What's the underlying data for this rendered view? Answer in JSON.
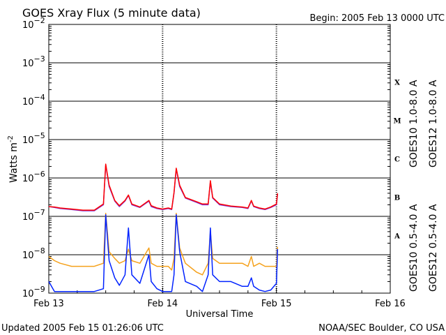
{
  "header": {
    "title": "GOES Xray Flux (5 minute data)",
    "begin": "Begin:  2005 Feb 13 0000 UTC"
  },
  "footer": {
    "updated": "Updated 2005 Feb 15 01:26:06 UTC",
    "credit": "NOAA/SEC Boulder, CO USA"
  },
  "colors": {
    "goes10_long": "#7b2fd6",
    "goes12_long": "#ff0000",
    "goes10_short": "#f5a11b",
    "goes12_short": "#0022ff",
    "grid": "#000000"
  },
  "chart_data": {
    "type": "line",
    "title": "GOES Xray Flux (5 minute data)",
    "xlabel": "Universal Time",
    "ylabel": "Watts m",
    "ylabel_sup": "-2",
    "yscale": "log",
    "ylim": [
      1e-09,
      0.01
    ],
    "xlim_days": [
      0,
      3
    ],
    "x_ticks": [
      {
        "day": 0,
        "label": "Feb 13"
      },
      {
        "day": 1,
        "label": "Feb 14"
      },
      {
        "day": 2,
        "label": "Feb 15"
      },
      {
        "day": 3,
        "label": "Feb 16"
      }
    ],
    "y_ticks": [
      {
        "exp": -2,
        "label": "10",
        "sup": "−2"
      },
      {
        "exp": -3,
        "label": "10",
        "sup": "−3"
      },
      {
        "exp": -4,
        "label": "10",
        "sup": "−4"
      },
      {
        "exp": -5,
        "label": "10",
        "sup": "−5"
      },
      {
        "exp": -6,
        "label": "10",
        "sup": "−6"
      },
      {
        "exp": -7,
        "label": "10",
        "sup": "−7"
      },
      {
        "exp": -8,
        "label": "10",
        "sup": "−8"
      },
      {
        "exp": -9,
        "label": "10",
        "sup": "−9"
      }
    ],
    "flare_classes": [
      {
        "label": "X",
        "exp": -3.5
      },
      {
        "label": "M",
        "exp": -4.5
      },
      {
        "label": "C",
        "exp": -5.5
      },
      {
        "label": "B",
        "exp": -6.5
      },
      {
        "label": "A",
        "exp": -7.5
      }
    ],
    "series": [
      {
        "name": "GOES10 1.0-8.0 A",
        "color": "#7b2fd6",
        "points": [
          [
            0,
            1.8e-07
          ],
          [
            0.05,
            1.7e-07
          ],
          [
            0.1,
            1.6e-07
          ],
          [
            0.2,
            1.5e-07
          ],
          [
            0.3,
            1.4e-07
          ],
          [
            0.4,
            1.4e-07
          ],
          [
            0.48,
            2e-07
          ],
          [
            0.5,
            2.2e-06
          ],
          [
            0.53,
            6e-07
          ],
          [
            0.58,
            2.5e-07
          ],
          [
            0.62,
            1.8e-07
          ],
          [
            0.67,
            2.5e-07
          ],
          [
            0.7,
            3.5e-07
          ],
          [
            0.73,
            2e-07
          ],
          [
            0.8,
            1.7e-07
          ],
          [
            0.88,
            2.5e-07
          ],
          [
            0.9,
            1.8e-07
          ],
          [
            0.95,
            1.6e-07
          ],
          [
            1.0,
            1.5e-07
          ],
          [
            1.05,
            1.6e-07
          ],
          [
            1.08,
            1.5e-07
          ],
          [
            1.1,
            4e-07
          ],
          [
            1.12,
            1.7e-06
          ],
          [
            1.15,
            6e-07
          ],
          [
            1.2,
            3e-07
          ],
          [
            1.3,
            2.3e-07
          ],
          [
            1.35,
            2e-07
          ],
          [
            1.4,
            2e-07
          ],
          [
            1.42,
            8e-07
          ],
          [
            1.44,
            3e-07
          ],
          [
            1.5,
            2e-07
          ],
          [
            1.6,
            1.8e-07
          ],
          [
            1.7,
            1.7e-07
          ],
          [
            1.75,
            1.6e-07
          ],
          [
            1.78,
            2.5e-07
          ],
          [
            1.8,
            1.8e-07
          ],
          [
            1.85,
            1.6e-07
          ],
          [
            1.9,
            1.5e-07
          ],
          [
            1.95,
            1.7e-07
          ],
          [
            2.0,
            2e-07
          ],
          [
            2.01,
            3.8e-07
          ]
        ]
      },
      {
        "name": "GOES12 1.0-8.0 A",
        "color": "#ff0000",
        "points": [
          [
            0,
            1.8e-07
          ],
          [
            0.05,
            1.75e-07
          ],
          [
            0.1,
            1.65e-07
          ],
          [
            0.2,
            1.55e-07
          ],
          [
            0.3,
            1.45e-07
          ],
          [
            0.4,
            1.45e-07
          ],
          [
            0.48,
            2.1e-07
          ],
          [
            0.5,
            2.3e-06
          ],
          [
            0.53,
            6.5e-07
          ],
          [
            0.58,
            2.6e-07
          ],
          [
            0.62,
            1.9e-07
          ],
          [
            0.67,
            2.6e-07
          ],
          [
            0.7,
            3.6e-07
          ],
          [
            0.73,
            2.1e-07
          ],
          [
            0.8,
            1.75e-07
          ],
          [
            0.88,
            2.6e-07
          ],
          [
            0.9,
            1.9e-07
          ],
          [
            0.95,
            1.65e-07
          ],
          [
            1.0,
            1.55e-07
          ],
          [
            1.05,
            1.65e-07
          ],
          [
            1.08,
            1.55e-07
          ],
          [
            1.1,
            4.2e-07
          ],
          [
            1.12,
            1.8e-06
          ],
          [
            1.15,
            6.5e-07
          ],
          [
            1.2,
            3.1e-07
          ],
          [
            1.3,
            2.4e-07
          ],
          [
            1.35,
            2.1e-07
          ],
          [
            1.4,
            2.1e-07
          ],
          [
            1.42,
            8.5e-07
          ],
          [
            1.44,
            3.1e-07
          ],
          [
            1.5,
            2.1e-07
          ],
          [
            1.6,
            1.85e-07
          ],
          [
            1.7,
            1.75e-07
          ],
          [
            1.75,
            1.65e-07
          ],
          [
            1.78,
            2.6e-07
          ],
          [
            1.8,
            1.85e-07
          ],
          [
            1.85,
            1.65e-07
          ],
          [
            1.9,
            1.55e-07
          ],
          [
            1.95,
            1.75e-07
          ],
          [
            2.0,
            2.1e-07
          ],
          [
            2.01,
            4e-07
          ]
        ]
      },
      {
        "name": "GOES10 0.5-4.0 A",
        "color": "#f5a11b",
        "points": [
          [
            0,
            9e-09
          ],
          [
            0.05,
            7e-09
          ],
          [
            0.1,
            6e-09
          ],
          [
            0.2,
            5e-09
          ],
          [
            0.3,
            5e-09
          ],
          [
            0.4,
            5e-09
          ],
          [
            0.48,
            6e-09
          ],
          [
            0.5,
            1.2e-07
          ],
          [
            0.53,
            1.2e-08
          ],
          [
            0.58,
            8e-09
          ],
          [
            0.62,
            6e-09
          ],
          [
            0.67,
            7e-09
          ],
          [
            0.7,
            1.4e-08
          ],
          [
            0.73,
            7e-09
          ],
          [
            0.8,
            6e-09
          ],
          [
            0.88,
            1.5e-08
          ],
          [
            0.9,
            6e-09
          ],
          [
            0.95,
            5e-09
          ],
          [
            1.0,
            5e-09
          ],
          [
            1.05,
            5e-09
          ],
          [
            1.08,
            4e-09
          ],
          [
            1.1,
            8e-09
          ],
          [
            1.12,
            1.2e-07
          ],
          [
            1.15,
            1.5e-08
          ],
          [
            1.2,
            6e-09
          ],
          [
            1.3,
            3.5e-09
          ],
          [
            1.35,
            3e-09
          ],
          [
            1.4,
            6e-09
          ],
          [
            1.42,
            4e-08
          ],
          [
            1.44,
            8e-09
          ],
          [
            1.5,
            6e-09
          ],
          [
            1.6,
            6e-09
          ],
          [
            1.7,
            6e-09
          ],
          [
            1.75,
            5e-09
          ],
          [
            1.78,
            9e-09
          ],
          [
            1.8,
            5e-09
          ],
          [
            1.85,
            6e-09
          ],
          [
            1.9,
            5e-09
          ],
          [
            1.95,
            5e-09
          ],
          [
            2.0,
            5e-09
          ],
          [
            2.01,
            1.6e-08
          ]
        ]
      },
      {
        "name": "GOES12 0.5-4.0 A",
        "color": "#0022ff",
        "points": [
          [
            0,
            2e-09
          ],
          [
            0.05,
            1.1e-09
          ],
          [
            0.1,
            1.1e-09
          ],
          [
            0.2,
            1.1e-09
          ],
          [
            0.3,
            1.1e-09
          ],
          [
            0.4,
            1.1e-09
          ],
          [
            0.48,
            1.3e-09
          ],
          [
            0.5,
            1.1e-07
          ],
          [
            0.53,
            7e-09
          ],
          [
            0.58,
            2.5e-09
          ],
          [
            0.62,
            1.6e-09
          ],
          [
            0.67,
            3e-09
          ],
          [
            0.7,
            5e-08
          ],
          [
            0.73,
            3e-09
          ],
          [
            0.8,
            1.8e-09
          ],
          [
            0.88,
            1e-08
          ],
          [
            0.9,
            2e-09
          ],
          [
            0.95,
            1.3e-09
          ],
          [
            1.0,
            1.1e-09
          ],
          [
            1.05,
            1.1e-09
          ],
          [
            1.08,
            1.1e-09
          ],
          [
            1.1,
            3e-09
          ],
          [
            1.12,
            1.1e-07
          ],
          [
            1.15,
            1.2e-08
          ],
          [
            1.2,
            2e-09
          ],
          [
            1.3,
            1.5e-09
          ],
          [
            1.35,
            1.1e-09
          ],
          [
            1.4,
            3e-09
          ],
          [
            1.42,
            5e-08
          ],
          [
            1.44,
            3e-09
          ],
          [
            1.5,
            2e-09
          ],
          [
            1.6,
            2e-09
          ],
          [
            1.7,
            1.5e-09
          ],
          [
            1.75,
            1.5e-09
          ],
          [
            1.78,
            2.5e-09
          ],
          [
            1.8,
            1.5e-09
          ],
          [
            1.85,
            1.2e-09
          ],
          [
            1.9,
            1.1e-09
          ],
          [
            1.95,
            1.2e-09
          ],
          [
            2.0,
            1.8e-09
          ],
          [
            2.01,
            1.4e-08
          ]
        ]
      }
    ]
  }
}
